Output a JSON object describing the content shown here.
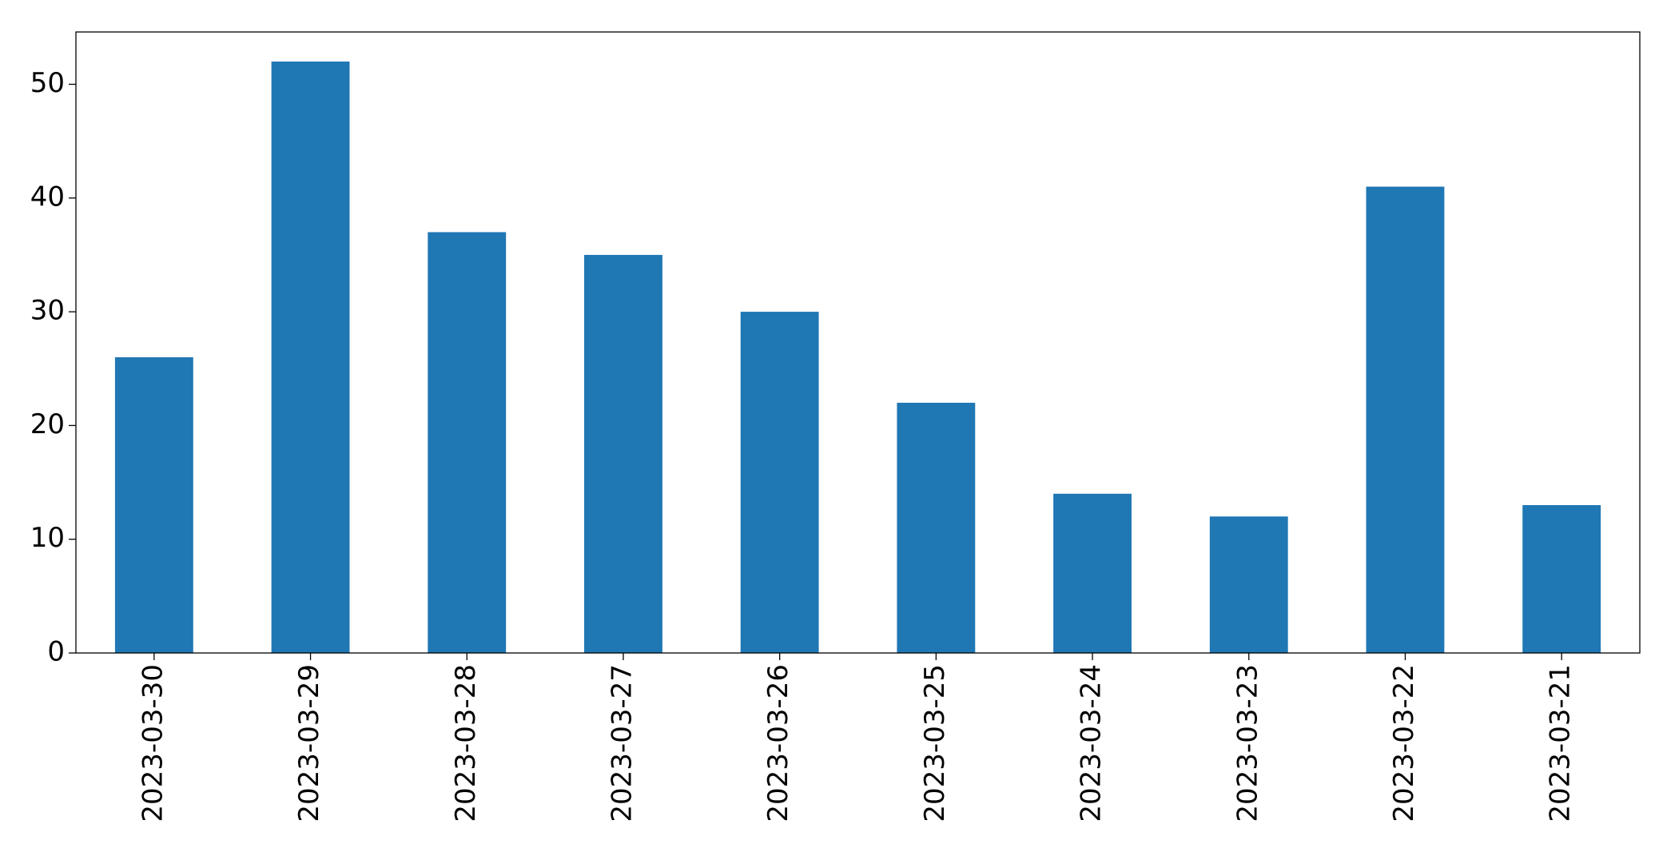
{
  "chart_data": {
    "type": "bar",
    "categories": [
      "2023-03-30",
      "2023-03-29",
      "2023-03-28",
      "2023-03-27",
      "2023-03-26",
      "2023-03-25",
      "2023-03-24",
      "2023-03-23",
      "2023-03-22",
      "2023-03-21"
    ],
    "values": [
      26,
      52,
      37,
      35,
      30,
      22,
      14,
      12,
      41,
      13
    ],
    "color": "#1f77b4",
    "ylim": [
      0,
      54.6
    ],
    "yticks": [
      0,
      10,
      20,
      30,
      40,
      50
    ],
    "grid": false
  }
}
